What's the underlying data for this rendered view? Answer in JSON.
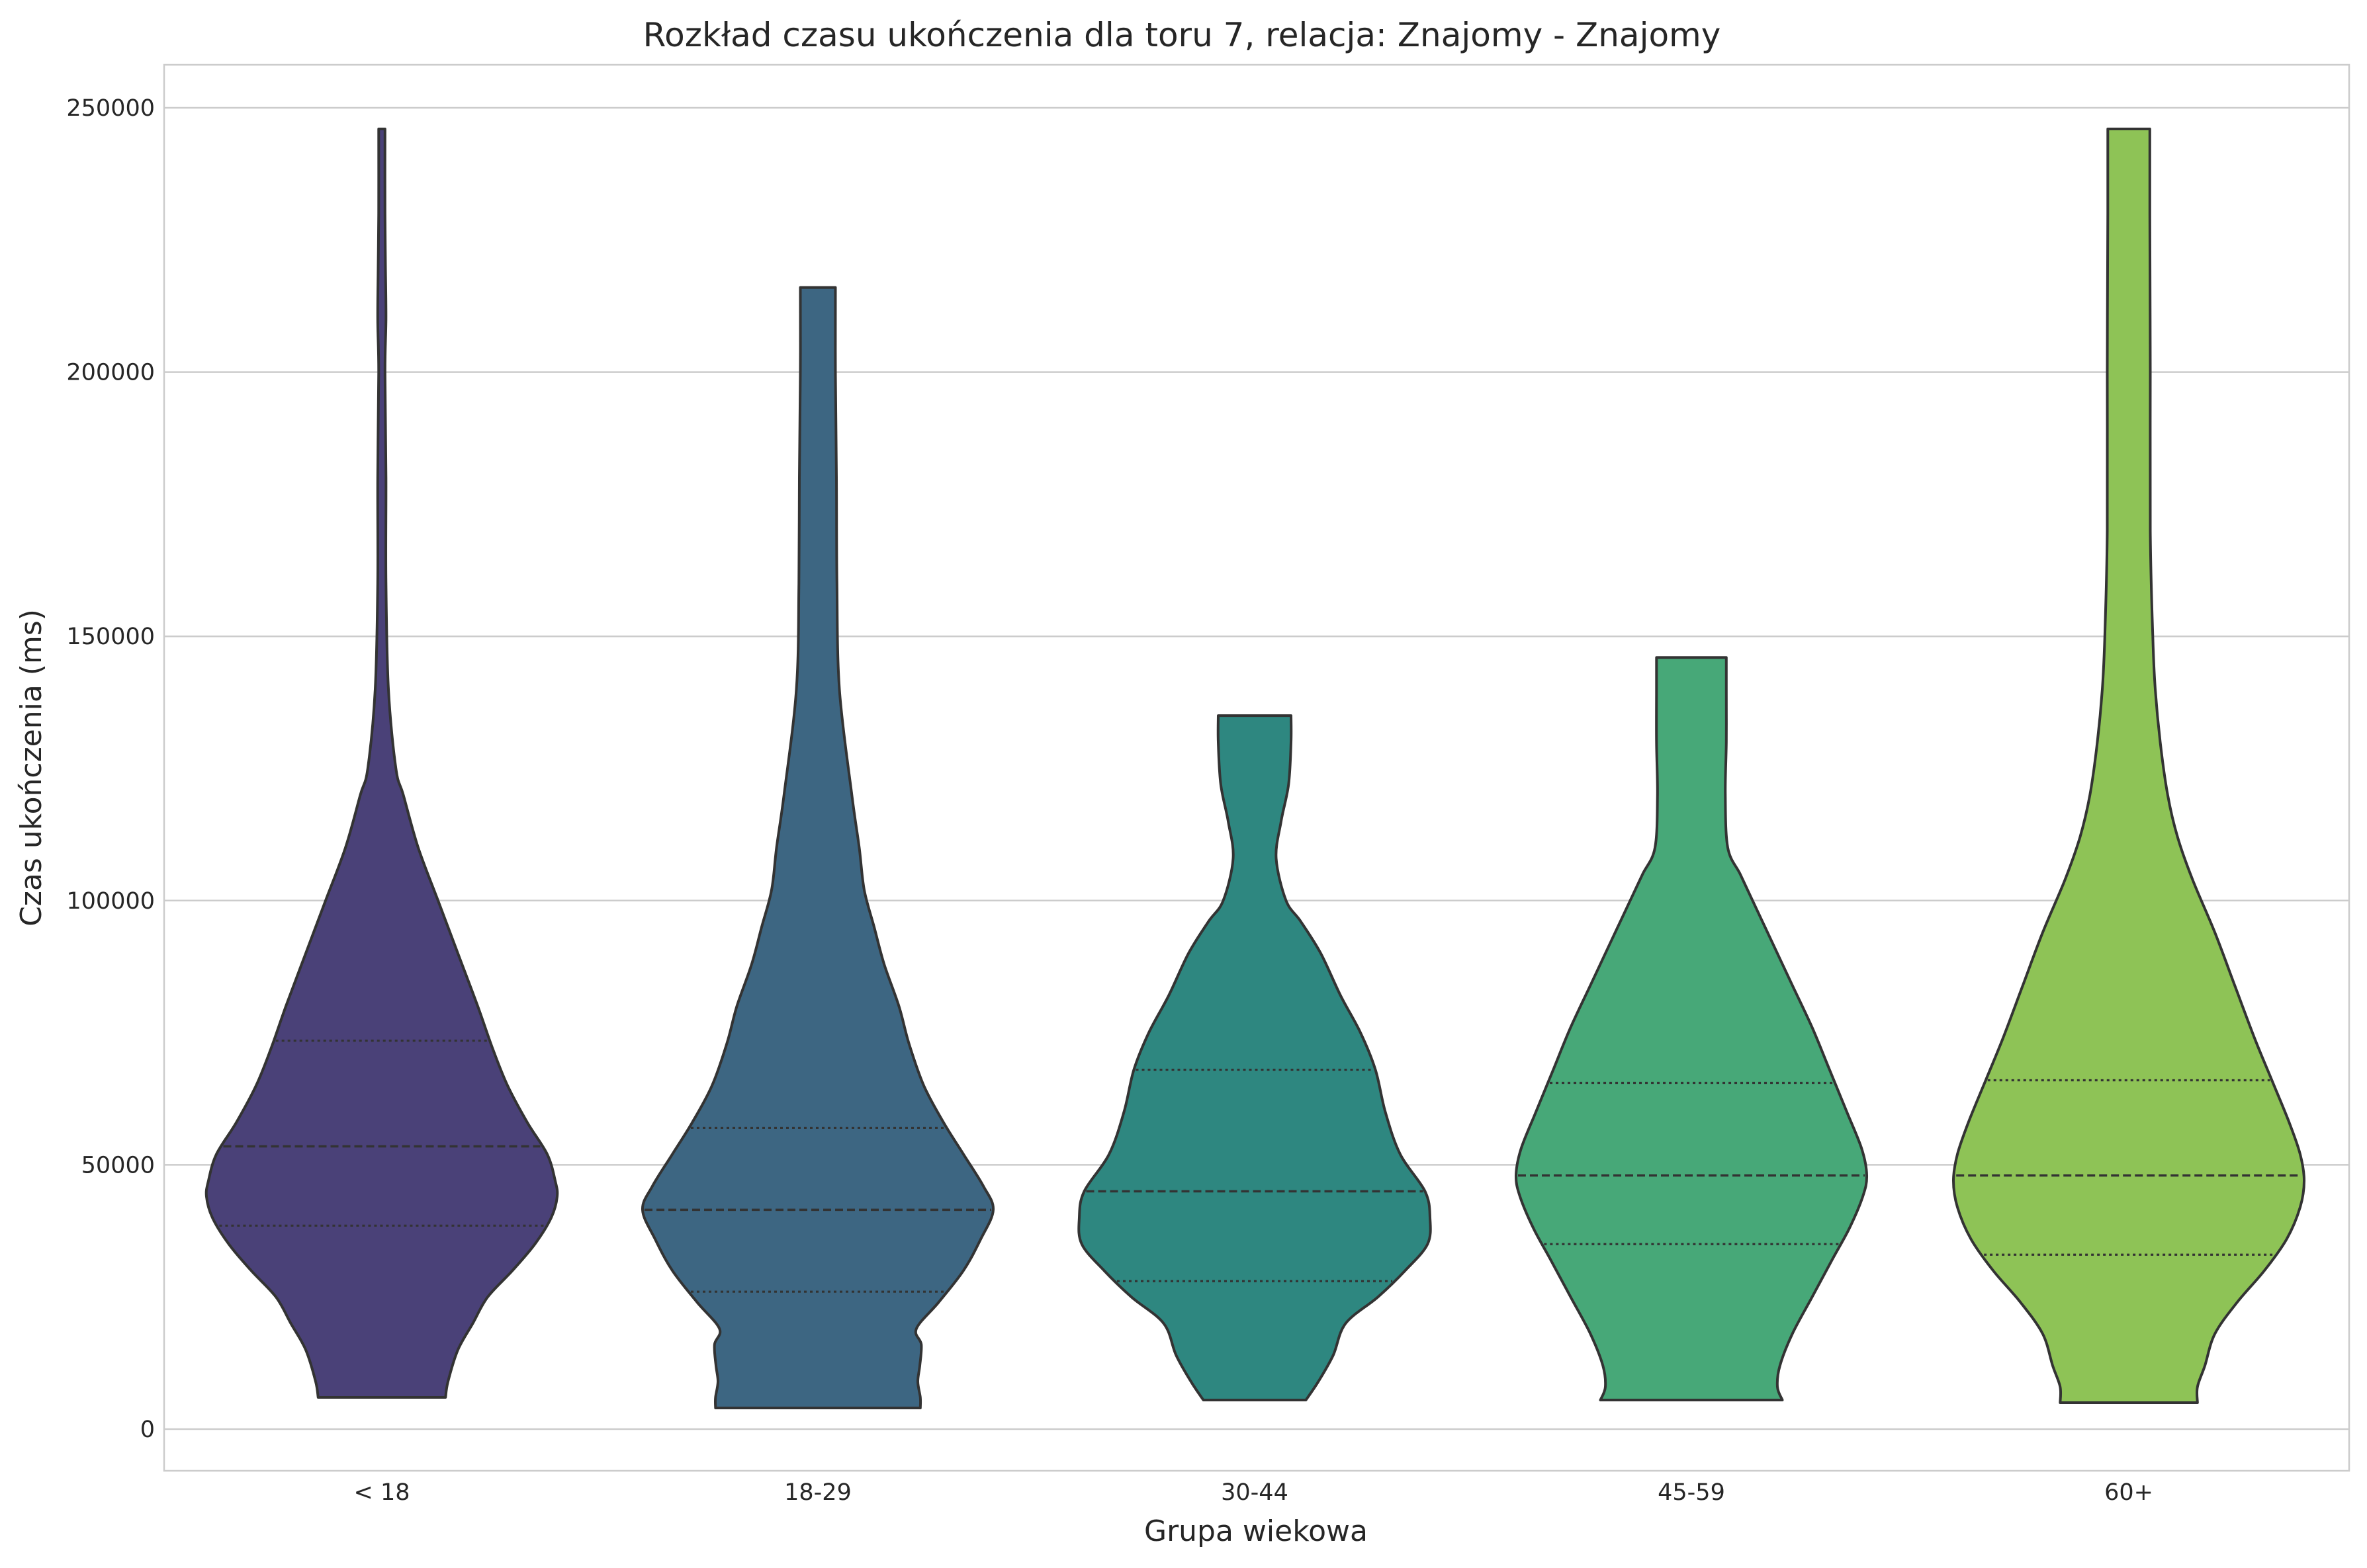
{
  "chart_data": {
    "type": "violin",
    "title": "Rozkład czasu ukończenia dla toru 7, relacja: Znajomy - Znajomy",
    "xlabel": "Grupa wiekowa",
    "ylabel": "Czas ukończenia (ms)",
    "ylim": [
      -8000,
      258000
    ],
    "yticks": [
      0,
      50000,
      100000,
      150000,
      200000,
      250000
    ],
    "ytick_labels": [
      "0",
      "50000",
      "100000",
      "150000",
      "200000",
      "250000"
    ],
    "grid": "horizontal",
    "legend": "none",
    "categories": [
      "< 18",
      "18-29",
      "30-44",
      "45-59",
      "60+"
    ],
    "series": [
      {
        "category": "< 18",
        "color": "#4a4178",
        "min": 6000,
        "max": 246000,
        "q1": 38500,
        "median": 53500,
        "q3": 73500,
        "density": [
          [
            6000,
            0.225
          ],
          [
            9000,
            0.22
          ],
          [
            15000,
            0.2
          ],
          [
            20000,
            0.17
          ],
          [
            25000,
            0.14
          ],
          [
            30000,
            0.09
          ],
          [
            35000,
            0.045
          ],
          [
            40000,
            0.012
          ],
          [
            44000,
            0.0
          ],
          [
            47000,
            0.004
          ],
          [
            52000,
            0.02
          ],
          [
            58000,
            0.06
          ],
          [
            65000,
            0.1
          ],
          [
            72000,
            0.13
          ],
          [
            80000,
            0.16
          ],
          [
            90000,
            0.2
          ],
          [
            100000,
            0.24
          ],
          [
            110000,
            0.28
          ],
          [
            120000,
            0.31
          ],
          [
            125000,
            0.325
          ],
          [
            140000,
            0.34
          ],
          [
            160000,
            0.345
          ],
          [
            180000,
            0.345
          ],
          [
            200000,
            0.347
          ],
          [
            210000,
            0.345
          ],
          [
            220000,
            0.346
          ],
          [
            230000,
            0.347
          ],
          [
            246000,
            0.347
          ]
        ]
      },
      {
        "category": "18-29",
        "color": "#3d6682",
        "min": 4000,
        "max": 216000,
        "q1": 26000,
        "median": 41500,
        "q3": 57000,
        "density": [
          [
            4000,
            0.147
          ],
          [
            6000,
            0.147
          ],
          [
            9000,
            0.152
          ],
          [
            12000,
            0.148
          ],
          [
            16000,
            0.145
          ],
          [
            19000,
            0.155
          ],
          [
            24000,
            0.11
          ],
          [
            30000,
            0.06
          ],
          [
            36000,
            0.025
          ],
          [
            41500,
            0.0
          ],
          [
            46000,
            0.02
          ],
          [
            52000,
            0.06
          ],
          [
            58000,
            0.1
          ],
          [
            65000,
            0.14
          ],
          [
            73000,
            0.17
          ],
          [
            80000,
            0.19
          ],
          [
            88000,
            0.22
          ],
          [
            95000,
            0.24
          ],
          [
            102000,
            0.26
          ],
          [
            110000,
            0.27
          ],
          [
            120000,
            0.285
          ],
          [
            140000,
            0.31
          ],
          [
            160000,
            0.315
          ],
          [
            180000,
            0.316
          ],
          [
            200000,
            0.318
          ],
          [
            216000,
            0.318
          ]
        ]
      },
      {
        "category": "30-44",
        "color": "#2e8780",
        "min": 5500,
        "max": 135000,
        "q1": 28000,
        "median": 45000,
        "q3": 68000,
        "density": [
          [
            5500,
            0.25
          ],
          [
            9000,
            0.225
          ],
          [
            14000,
            0.195
          ],
          [
            20000,
            0.17
          ],
          [
            25000,
            0.105
          ],
          [
            30000,
            0.05
          ],
          [
            35000,
            0.005
          ],
          [
            40000,
            0.0
          ],
          [
            45000,
            0.01
          ],
          [
            52000,
            0.06
          ],
          [
            60000,
            0.09
          ],
          [
            68000,
            0.11
          ],
          [
            75000,
            0.14
          ],
          [
            82000,
            0.18
          ],
          [
            90000,
            0.22
          ],
          [
            96000,
            0.26
          ],
          [
            100000,
            0.29
          ],
          [
            108000,
            0.31
          ],
          [
            115000,
            0.3
          ],
          [
            122000,
            0.285
          ],
          [
            130000,
            0.28
          ],
          [
            135000,
            0.28
          ]
        ]
      },
      {
        "category": "45-59",
        "color": "#47a878",
        "min": 5500,
        "max": 146000,
        "q1": 35000,
        "median": 48000,
        "q3": 65500,
        "density": [
          [
            5500,
            0.17
          ],
          [
            8000,
            0.18
          ],
          [
            12000,
            0.175
          ],
          [
            18000,
            0.15
          ],
          [
            25000,
            0.11
          ],
          [
            32000,
            0.07
          ],
          [
            38000,
            0.035
          ],
          [
            44000,
            0.008
          ],
          [
            48000,
            0.0
          ],
          [
            53000,
            0.01
          ],
          [
            60000,
            0.04
          ],
          [
            68000,
            0.075
          ],
          [
            76000,
            0.11
          ],
          [
            84000,
            0.15
          ],
          [
            92000,
            0.19
          ],
          [
            100000,
            0.23
          ],
          [
            105000,
            0.255
          ],
          [
            110000,
            0.28
          ],
          [
            120000,
            0.285
          ],
          [
            130000,
            0.283
          ],
          [
            140000,
            0.283
          ],
          [
            146000,
            0.283
          ]
        ]
      },
      {
        "category": "60+",
        "color": "#8ec356",
        "min": 5000,
        "max": 246000,
        "q1": 33000,
        "median": 48000,
        "q3": 66000,
        "density": [
          [
            5000,
            0.215
          ],
          [
            8000,
            0.215
          ],
          [
            12000,
            0.2
          ],
          [
            18000,
            0.18
          ],
          [
            24000,
            0.135
          ],
          [
            30000,
            0.08
          ],
          [
            36000,
            0.035
          ],
          [
            42000,
            0.008
          ],
          [
            47000,
            0.0
          ],
          [
            52000,
            0.008
          ],
          [
            58000,
            0.03
          ],
          [
            66000,
            0.065
          ],
          [
            74000,
            0.1
          ],
          [
            84000,
            0.14
          ],
          [
            94000,
            0.18
          ],
          [
            104000,
            0.225
          ],
          [
            112000,
            0.255
          ],
          [
            120000,
            0.275
          ],
          [
            130000,
            0.29
          ],
          [
            140000,
            0.3
          ],
          [
            150000,
            0.305
          ],
          [
            170000,
            0.31
          ],
          [
            200000,
            0.31
          ],
          [
            230000,
            0.311
          ],
          [
            246000,
            0.311
          ]
        ]
      }
    ]
  }
}
